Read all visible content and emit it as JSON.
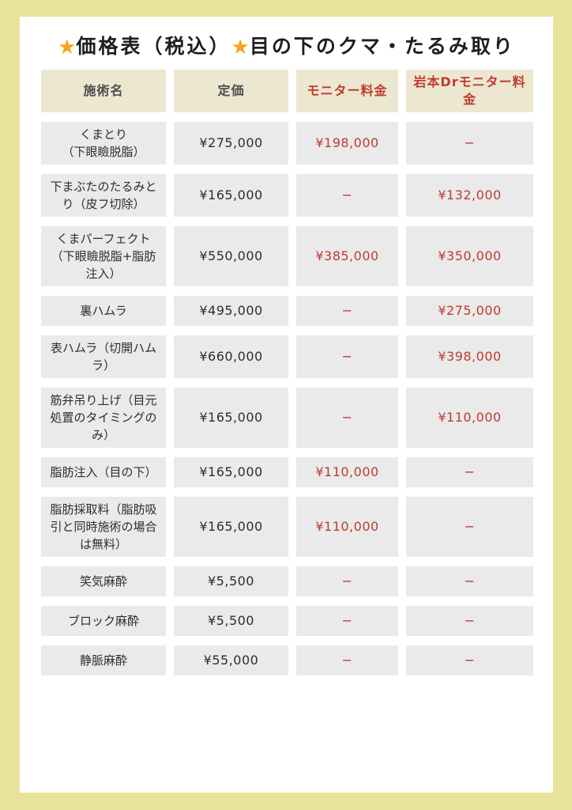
{
  "page": {
    "title": {
      "star": "★",
      "part1": "価格表（税込）",
      "part2": "目の下のクマ・たるみ取り"
    },
    "colors": {
      "frame_yellow": "#e9e29a",
      "sheet_white": "#ffffff",
      "header_beige": "#ece7d0",
      "cell_gray": "#eaeaea",
      "accent_red": "#c03a2f",
      "star_orange": "#f7a41d",
      "text_dark": "#2d2d2d"
    }
  },
  "table": {
    "headers": {
      "procedure": "施術名",
      "list_price": "定価",
      "monitor": "モニター料金",
      "dr_monitor": "岩本Drモニター料金"
    },
    "rows": [
      {
        "name": "くまとり\n（下眼瞼脱脂）",
        "price": "¥275,000",
        "monitor": "¥198,000",
        "dr_monitor": "−"
      },
      {
        "name": "下まぶたのたるみと\nり（皮フ切除）",
        "price": "¥165,000",
        "monitor": "−",
        "dr_monitor": "¥132,000"
      },
      {
        "name": "くまパーフェクト\n（下眼瞼脱脂+脂肪\n注入）",
        "price": "¥550,000",
        "monitor": "¥385,000",
        "dr_monitor": "¥350,000"
      },
      {
        "name": "裏ハムラ",
        "price": "¥495,000",
        "monitor": "−",
        "dr_monitor": "¥275,000"
      },
      {
        "name": "表ハムラ（切開ハム\nラ）",
        "price": "¥660,000",
        "monitor": "−",
        "dr_monitor": "¥398,000"
      },
      {
        "name": "筋弁吊り上げ（目元\n処置のタイミングの\nみ）",
        "price": "¥165,000",
        "monitor": "−",
        "dr_monitor": "¥110,000"
      },
      {
        "name": "脂肪注入（目の下）",
        "price": "¥165,000",
        "monitor": "¥110,000",
        "dr_monitor": "−"
      },
      {
        "name": "脂肪採取料（脂肪吸\n引と同時施術の場合\nは無料）",
        "price": "¥165,000",
        "monitor": "¥110,000",
        "dr_monitor": "−"
      },
      {
        "name": "笑気麻酔",
        "price": "¥5,500",
        "monitor": "−",
        "dr_monitor": "−"
      },
      {
        "name": "ブロック麻酔",
        "price": "¥5,500",
        "monitor": "−",
        "dr_monitor": "−"
      },
      {
        "name": "静脈麻酔",
        "price": "¥55,000",
        "monitor": "−",
        "dr_monitor": "−"
      }
    ]
  }
}
